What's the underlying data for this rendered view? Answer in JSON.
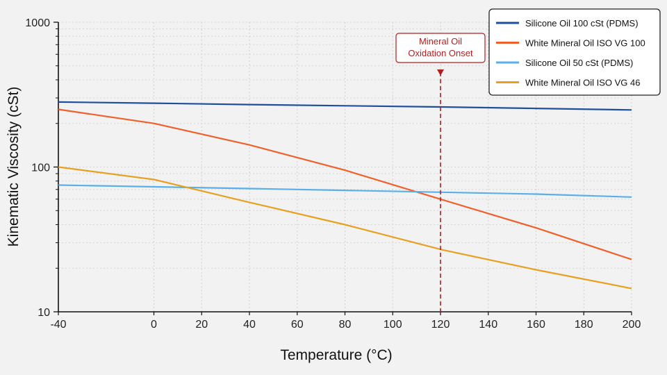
{
  "chart_data": {
    "type": "line",
    "xlabel": "Temperature (°C)",
    "ylabel": "Kinematic Viscosity (cSt)",
    "xlim": [
      -40,
      200
    ],
    "ylim": [
      10,
      1000
    ],
    "yscale": "log",
    "grid": true,
    "legend_position": "top-right",
    "x_ticks": [
      -40,
      0,
      20,
      40,
      60,
      80,
      100,
      120,
      140,
      160,
      180,
      200
    ],
    "y_ticks": [
      10,
      100,
      1000
    ],
    "x": [
      -40,
      0,
      40,
      80,
      120,
      160,
      200
    ],
    "series": [
      {
        "name": "Silicone Oil 100 cSt (PDMS)",
        "color": "#1f4e9c",
        "values": [
          281,
          276,
          270,
          265,
          260,
          254,
          248
        ]
      },
      {
        "name": "White Mineral Oil ISO VG 100",
        "color": "#f0602a",
        "values": [
          250,
          200,
          142,
          95,
          60,
          38,
          23
        ]
      },
      {
        "name": "Silicone Oil 50 cSt (PDMS)",
        "color": "#5aafe8",
        "values": [
          75,
          73,
          71,
          69,
          67,
          65,
          62
        ]
      },
      {
        "name": "White Mineral Oil ISO VG 46",
        "color": "#e8a020",
        "values": [
          100,
          82,
          57,
          40,
          27,
          19.5,
          14.5
        ]
      }
    ],
    "annotation": {
      "lines": [
        "Mineral Oil",
        "Oxidation Onset"
      ],
      "x": 120,
      "color": "#b21f1f"
    }
  }
}
